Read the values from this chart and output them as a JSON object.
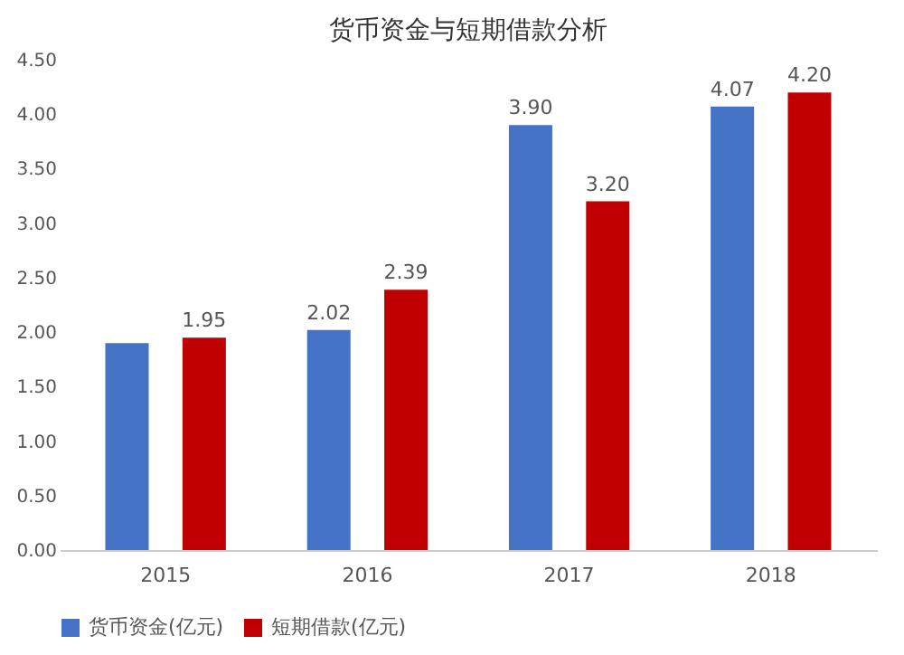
{
  "chart_data": {
    "type": "bar",
    "title": "货币资金与短期借款分析",
    "categories": [
      "2015",
      "2016",
      "2017",
      "2018"
    ],
    "series": [
      {
        "name": "货币资金(亿元)",
        "color": "#4472c4",
        "values": [
          1.9,
          2.02,
          3.9,
          4.07
        ],
        "value_labels": [
          null,
          "2.02",
          "3.90",
          "4.07"
        ]
      },
      {
        "name": "短期借款(亿元)",
        "color": "#c00000",
        "values": [
          1.95,
          2.39,
          3.2,
          4.2
        ],
        "value_labels": [
          "1.95",
          "2.39",
          "3.20",
          "4.20"
        ]
      }
    ],
    "ylim": [
      0,
      4.5
    ],
    "yticks": [
      {
        "value": 0,
        "label": "0.00"
      },
      {
        "value": 0.5,
        "label": "0.50"
      },
      {
        "value": 1,
        "label": "1.00"
      },
      {
        "value": 1.5,
        "label": "1.50"
      },
      {
        "value": 2,
        "label": "2.00"
      },
      {
        "value": 2.5,
        "label": "2.50"
      },
      {
        "value": 3,
        "label": "3.00"
      },
      {
        "value": 3.5,
        "label": "3.50"
      },
      {
        "value": 4,
        "label": "4.00"
      },
      {
        "value": 4.5,
        "label": "4.50"
      }
    ],
    "grid": false,
    "legend": "bottom"
  }
}
